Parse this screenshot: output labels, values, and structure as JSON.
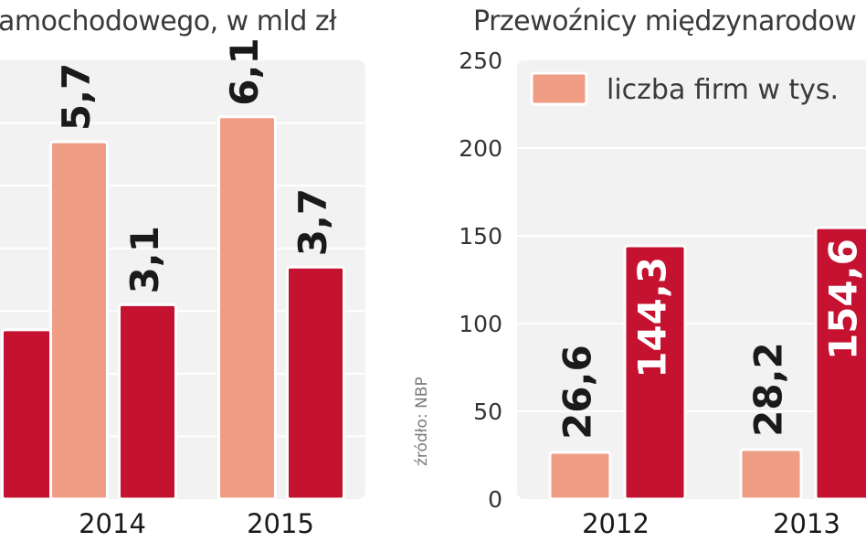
{
  "chart_data": [
    {
      "type": "bar",
      "title": "amochodowego, w mld zł",
      "categories": [
        "",
        "2014",
        "2015"
      ],
      "series": [
        {
          "name": "",
          "color": "#ef9e85",
          "values": [
            null,
            5.7,
            6.1
          ],
          "labels": [
            "",
            "5,7",
            "6,1"
          ]
        },
        {
          "name": "",
          "color": "#c41230",
          "values": [
            2.7,
            3.1,
            3.7
          ],
          "labels": [
            "",
            "3,1",
            "3,7"
          ]
        }
      ],
      "ylim": [
        0,
        7
      ],
      "grid": true,
      "legend": "none"
    },
    {
      "type": "bar",
      "title": "Przewoźnicy międzynarodow",
      "categories": [
        "2012",
        "2013"
      ],
      "series": [
        {
          "name": "liczba firm w tys.",
          "color": "#ef9e85",
          "values": [
            26.6,
            28.2
          ],
          "labels": [
            "26,6",
            "28,2"
          ]
        },
        {
          "name": "",
          "color": "#c41230",
          "values": [
            144.3,
            154.6
          ],
          "labels": [
            "144,3",
            "154,6"
          ]
        }
      ],
      "yticks": [
        "0",
        "50",
        "100",
        "150",
        "200",
        "250"
      ],
      "ylim": [
        0,
        250
      ],
      "grid": true,
      "legend": "top-left"
    }
  ],
  "source": "źródło: NBP"
}
